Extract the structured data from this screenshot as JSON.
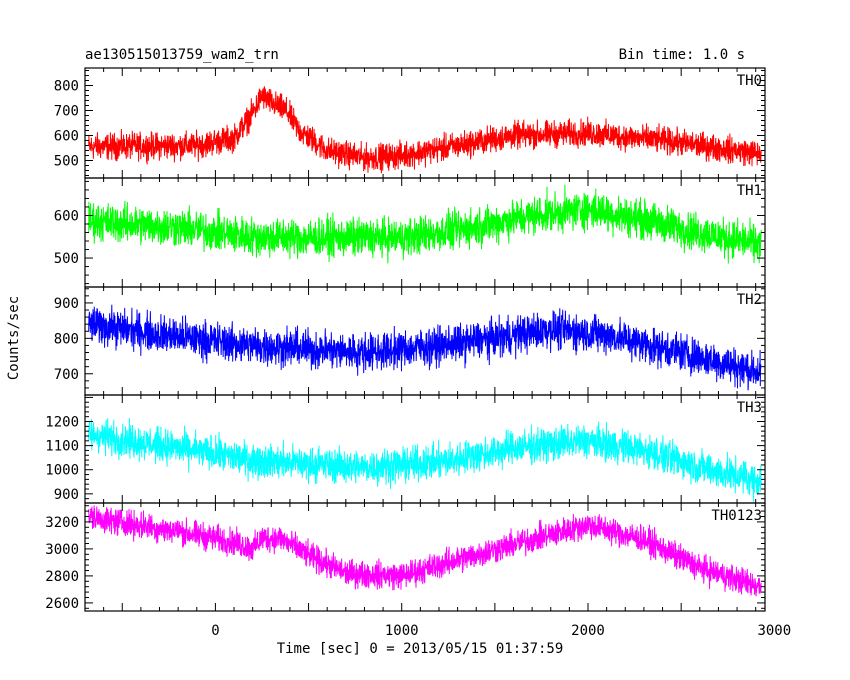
{
  "header": {
    "title": "ae130515013759_wam2_trn",
    "bin_time": "Bin time: 1.0 s"
  },
  "chart_data": {
    "type": "line",
    "xlabel": "Time [sec] 0 = 2013/05/15 01:37:59",
    "ylabel": "Counts/sec",
    "xlim": [
      -700,
      2950
    ],
    "x_ticks": [
      0,
      1000,
      2000,
      3000
    ],
    "panels": [
      {
        "name": "TH0",
        "color": "#ff0000",
        "ylim": [
          430,
          870
        ],
        "y_ticks": [
          500,
          600,
          700,
          800
        ],
        "trend": [
          [
            -700,
            555
          ],
          [
            -100,
            560
          ],
          [
            100,
            590
          ],
          [
            200,
            690
          ],
          [
            250,
            760
          ],
          [
            300,
            730
          ],
          [
            380,
            700
          ],
          [
            450,
            620
          ],
          [
            600,
            540
          ],
          [
            800,
            510
          ],
          [
            1000,
            520
          ],
          [
            1300,
            560
          ],
          [
            1600,
            600
          ],
          [
            2000,
            610
          ],
          [
            2400,
            580
          ],
          [
            2700,
            550
          ],
          [
            2950,
            525
          ]
        ],
        "noise": 45
      },
      {
        "name": "TH1",
        "color": "#00ff00",
        "ylim": [
          432,
          688
        ],
        "y_ticks": [
          500,
          600
        ],
        "trend": [
          [
            -700,
            588
          ],
          [
            -200,
            572
          ],
          [
            200,
            550
          ],
          [
            500,
            548
          ],
          [
            1000,
            548
          ],
          [
            1300,
            565
          ],
          [
            1700,
            600
          ],
          [
            2000,
            615
          ],
          [
            2300,
            590
          ],
          [
            2600,
            560
          ],
          [
            2950,
            530
          ]
        ],
        "noise": 38
      },
      {
        "name": "TH2",
        "color": "#0000ff",
        "ylim": [
          640,
          945
        ],
        "y_ticks": [
          700,
          800,
          900
        ],
        "trend": [
          [
            -700,
            842
          ],
          [
            -200,
            805
          ],
          [
            200,
            780
          ],
          [
            800,
            760
          ],
          [
            1300,
            785
          ],
          [
            1800,
            825
          ],
          [
            2100,
            810
          ],
          [
            2500,
            760
          ],
          [
            2950,
            700
          ]
        ],
        "noise": 45
      },
      {
        "name": "TH3",
        "color": "#00ffff",
        "ylim": [
          862,
          1310
        ],
        "y_ticks": [
          900,
          1000,
          1100,
          1200
        ],
        "trend": [
          [
            -700,
            1150
          ],
          [
            -200,
            1090
          ],
          [
            200,
            1040
          ],
          [
            800,
            1010
          ],
          [
            1200,
            1030
          ],
          [
            1600,
            1090
          ],
          [
            2000,
            1120
          ],
          [
            2300,
            1080
          ],
          [
            2700,
            990
          ],
          [
            2950,
            950
          ]
        ],
        "noise": 60
      },
      {
        "name": "TH0123",
        "color": "#ff00ff",
        "ylim": [
          2540,
          3340
        ],
        "y_ticks": [
          2600,
          2800,
          3000,
          3200
        ],
        "trend": [
          [
            -700,
            3240
          ],
          [
            -200,
            3130
          ],
          [
            100,
            3050
          ],
          [
            200,
            3000
          ],
          [
            250,
            3080
          ],
          [
            350,
            3080
          ],
          [
            500,
            2950
          ],
          [
            700,
            2820
          ],
          [
            1000,
            2800
          ],
          [
            1300,
            2920
          ],
          [
            1700,
            3070
          ],
          [
            2000,
            3180
          ],
          [
            2300,
            3070
          ],
          [
            2600,
            2860
          ],
          [
            2950,
            2710
          ]
        ],
        "noise": 85
      }
    ]
  }
}
